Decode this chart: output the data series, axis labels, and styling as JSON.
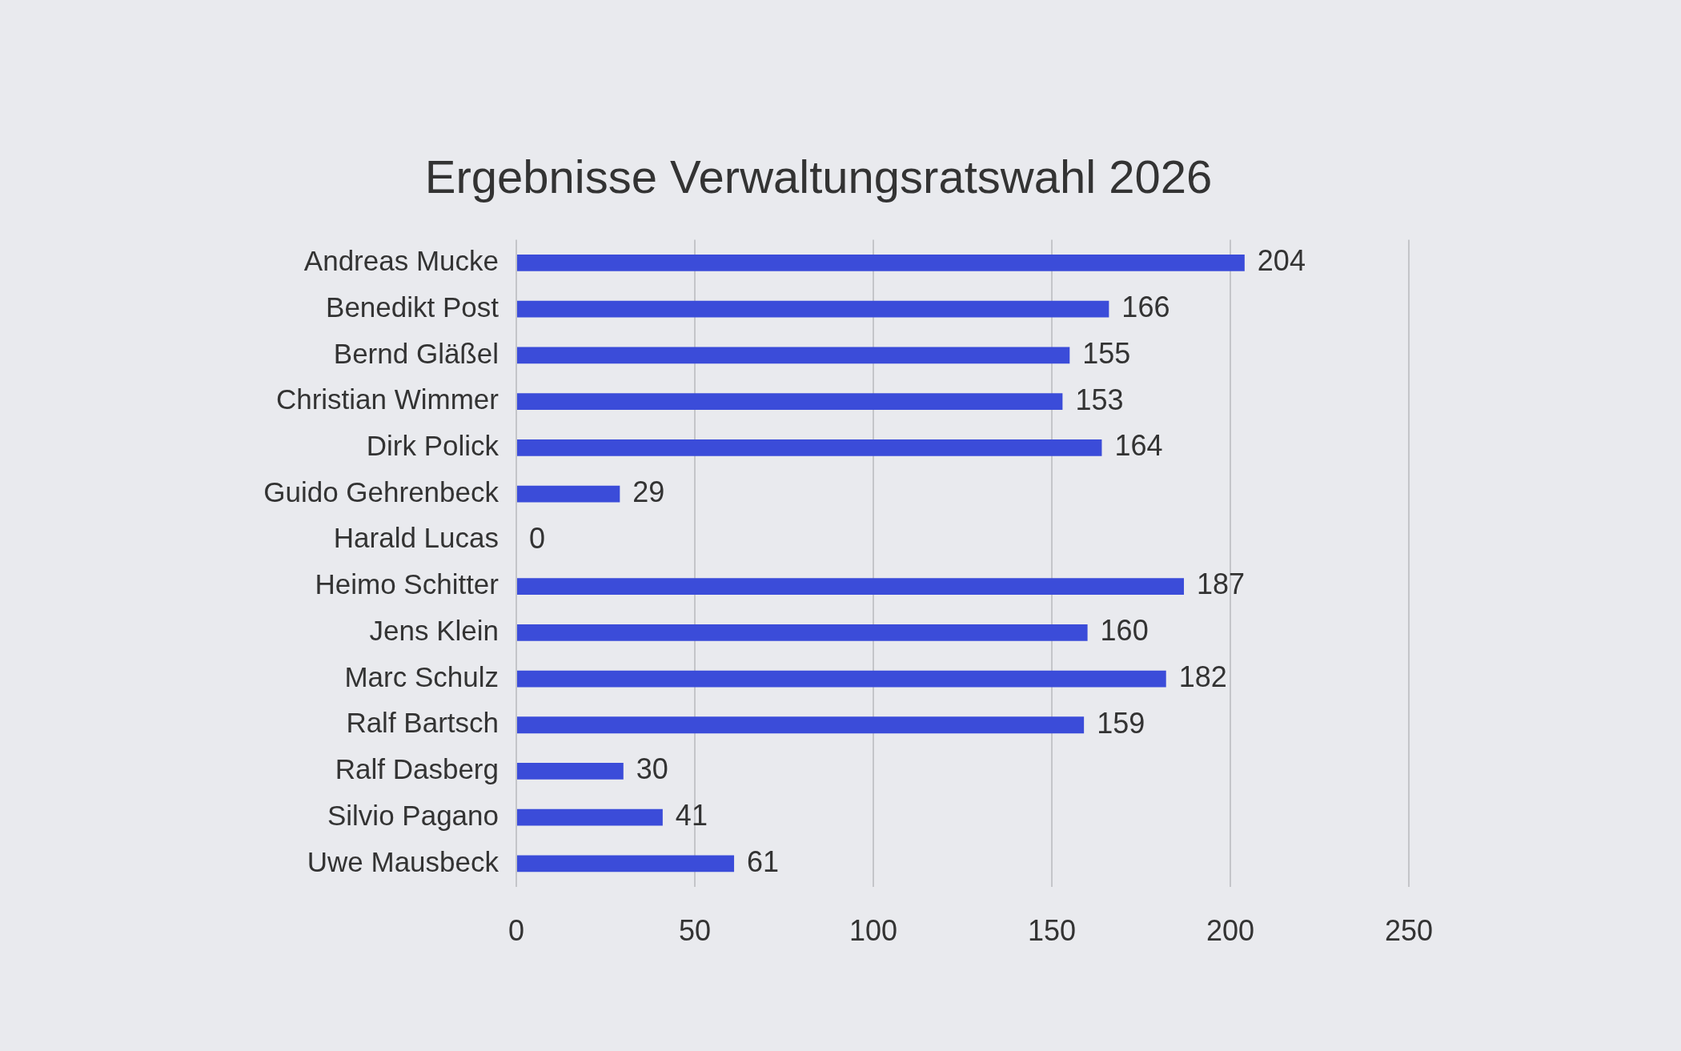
{
  "chart_data": {
    "type": "bar",
    "orientation": "horizontal",
    "title": "Ergebnisse Verwaltungsratswahl 2026",
    "categories": [
      "Andreas Mucke",
      "Benedikt Post",
      "Bernd Gläßel",
      "Christian Wimmer",
      "Dirk Polick",
      "Guido Gehrenbeck",
      "Harald Lucas",
      "Heimo Schitter",
      "Jens Klein",
      "Marc Schulz",
      "Ralf Bartsch",
      "Ralf Dasberg",
      "Silvio Pagano",
      "Uwe Mausbeck"
    ],
    "values": [
      204,
      166,
      155,
      153,
      164,
      29,
      0,
      187,
      160,
      182,
      159,
      30,
      41,
      61
    ],
    "color": "#3b4cd9",
    "xlim": [
      0,
      250
    ],
    "xticks": [
      0,
      50,
      100,
      150,
      200,
      250
    ],
    "grid": "x",
    "data_labels": true
  }
}
